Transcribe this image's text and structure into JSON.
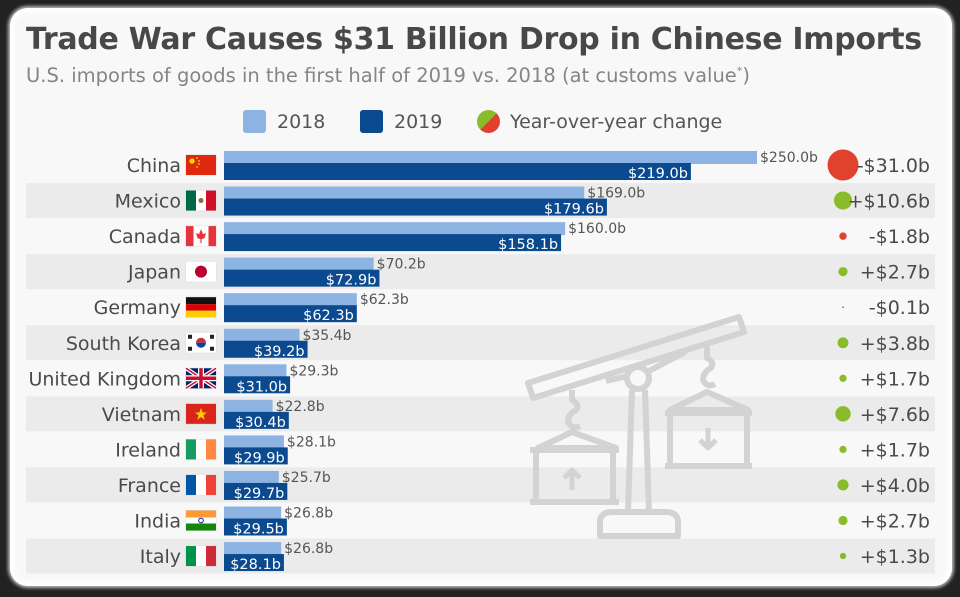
{
  "title": "Trade War Causes $31 Billion Drop in Chinese Imports",
  "subtitle": "U.S. imports of goods in the first half of 2019 vs. 2018 (at customs value",
  "subtitle_sup": "*",
  "subtitle_end": ")",
  "colors": {
    "bar_2018": "#8db3e2",
    "bar_2019": "#0b4a8f",
    "positive": "#8abb2a",
    "negative": "#e0422f",
    "stripe": "#ebebeb",
    "background": "#f8f8f8",
    "watermark": "#d0d0d0"
  },
  "legend": {
    "items": [
      {
        "label": "2018",
        "icon": "light-blue-square"
      },
      {
        "label": "2019",
        "icon": "dark-blue-square"
      },
      {
        "label": "Year-over-year change",
        "icon": "green-red-circle"
      }
    ]
  },
  "watermark_icon": "balance-crane-icon",
  "chart_data": {
    "type": "bar",
    "orientation": "horizontal",
    "title": "Trade War Causes $31 Billion Drop in Chinese Imports",
    "subtitle": "U.S. imports of goods in the first half of 2019 vs. 2018 (at customs value*)",
    "xlabel": "",
    "ylabel": "",
    "unit": "billion USD",
    "xlim": [
      0,
      250
    ],
    "grid": false,
    "legend_position": "top",
    "categories": [
      "China",
      "Mexico",
      "Canada",
      "Japan",
      "Germany",
      "South Korea",
      "United Kingdom",
      "Vietnam",
      "Ireland",
      "France",
      "India",
      "Italy"
    ],
    "flags": [
      "china-flag",
      "mexico-flag",
      "canada-flag",
      "japan-flag",
      "germany-flag",
      "south-korea-flag",
      "uk-flag",
      "vietnam-flag",
      "ireland-flag",
      "france-flag",
      "india-flag",
      "italy-flag"
    ],
    "series": [
      {
        "name": "2018",
        "values": [
          250.0,
          169.0,
          160.0,
          70.2,
          62.3,
          35.4,
          29.3,
          22.8,
          28.1,
          25.7,
          26.8,
          26.8
        ],
        "labels": [
          "$250.0b",
          "$169.0b",
          "$160.0b",
          "$70.2b",
          "$62.3b",
          "$35.4b",
          "$29.3b",
          "$22.8b",
          "$28.1b",
          "$25.7b",
          "$26.8b",
          "$26.8b"
        ]
      },
      {
        "name": "2019",
        "values": [
          219.0,
          179.6,
          158.1,
          72.9,
          62.3,
          39.2,
          31.0,
          30.4,
          29.9,
          29.7,
          29.5,
          28.1
        ],
        "labels": [
          "$219.0b",
          "$179.6b",
          "$158.1b",
          "$72.9b",
          "$62.3b",
          "$39.2b",
          "$31.0b",
          "$30.4b",
          "$29.9b",
          "$29.7b",
          "$29.5b",
          "$28.1b"
        ]
      }
    ],
    "yoy_change": {
      "name": "Year-over-year change",
      "values": [
        -31.0,
        10.6,
        -1.8,
        2.7,
        -0.1,
        3.8,
        1.7,
        7.6,
        1.7,
        4.0,
        2.7,
        1.3
      ],
      "labels": [
        "-$31.0b",
        "+$10.6b",
        "-$1.8b",
        "+$2.7b",
        "-$0.1b",
        "+$3.8b",
        "+$1.7b",
        "+$7.6b",
        "+$1.7b",
        "+$4.0b",
        "+$2.7b",
        "+$1.3b"
      ]
    }
  }
}
